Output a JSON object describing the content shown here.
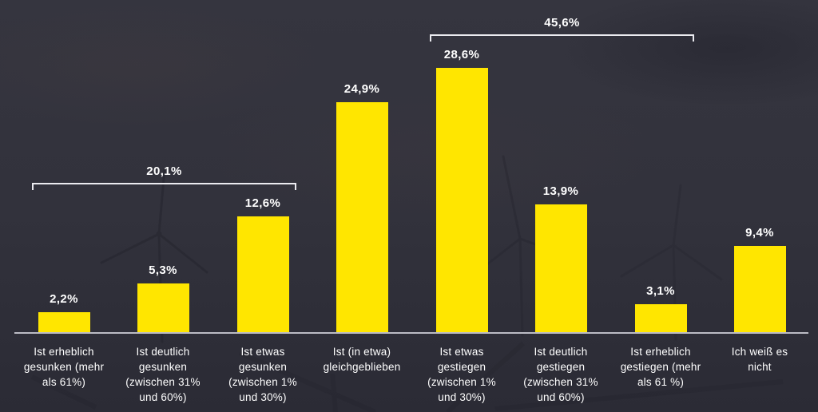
{
  "colors": {
    "background": "#32323c",
    "bar": "#ffe600",
    "text": "#ffffff",
    "axis": "#bcbcc5",
    "bracket": "#ebebf0"
  },
  "chart_data": {
    "type": "bar",
    "title": "",
    "xlabel": "",
    "ylabel": "",
    "ylim": [
      0,
      30
    ],
    "grid": false,
    "legend": null,
    "categories": [
      "Ist erheblich gesunken (mehr als 61%)",
      "Ist deutlich gesunken (zwischen 31% und 60%)",
      "Ist etwas gesunken (zwischen 1% und 30%)",
      "Ist (in etwa) gleichgeblieben",
      "Ist etwas gestiegen (zwischen 1% und 30%)",
      "Ist deutlich gestiegen (zwischen 31% und 60%)",
      "Ist erheblich gestiegen (mehr als 61 %)",
      "Ich weiß es nicht"
    ],
    "category_lines": [
      [
        "Ist erheblich",
        "gesunken (mehr",
        "als 61%)"
      ],
      [
        "Ist deutlich",
        "gesunken",
        "(zwischen 31%",
        "und 60%)"
      ],
      [
        "Ist etwas",
        "gesunken",
        "(zwischen 1%",
        "und 30%)"
      ],
      [
        "Ist (in etwa)",
        "gleichgeblieben"
      ],
      [
        "Ist etwas",
        "gestiegen",
        "(zwischen 1%",
        "und 30%)"
      ],
      [
        "Ist deutlich",
        "gestiegen",
        "(zwischen 31%",
        "und 60%)"
      ],
      [
        "Ist erheblich",
        "gestiegen (mehr",
        "als 61 %)"
      ],
      [
        "Ich weiß es",
        "nicht"
      ]
    ],
    "values": [
      2.2,
      5.3,
      12.6,
      24.9,
      28.6,
      13.9,
      3.1,
      9.4
    ],
    "display_values": [
      "2,2%",
      "5,3%",
      "12,6%",
      "24,9%",
      "28,6%",
      "13,9%",
      "3,1%",
      "9,4%"
    ],
    "brackets": [
      {
        "label": "20,1%",
        "from_index": 0,
        "to_index": 2
      },
      {
        "label": "45,6%",
        "from_index": 4,
        "to_index": 6
      }
    ]
  }
}
